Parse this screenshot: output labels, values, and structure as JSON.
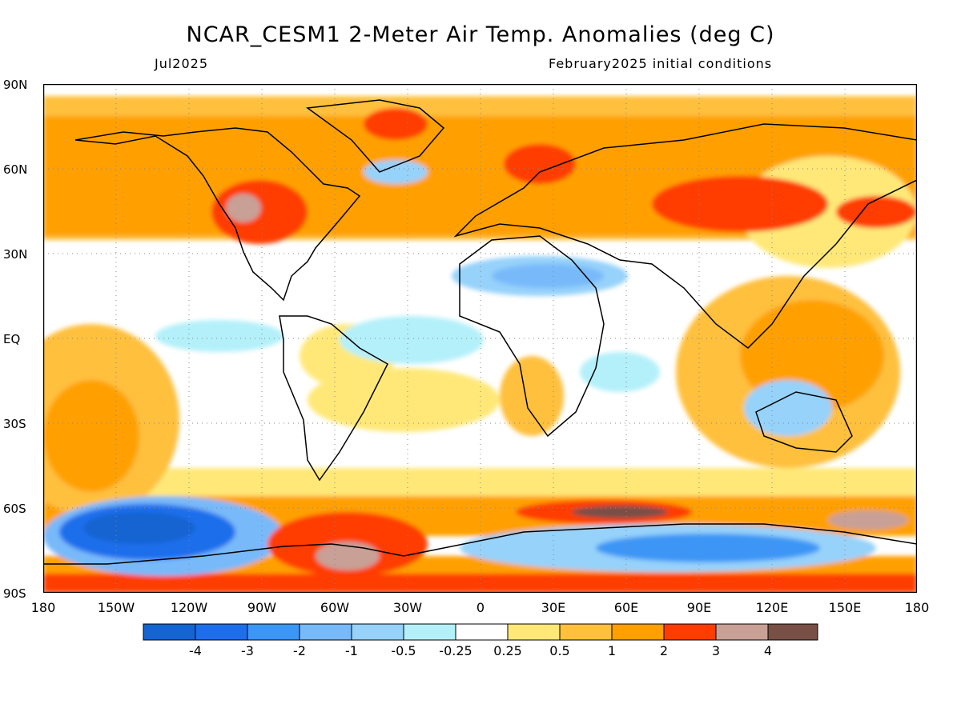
{
  "title": "NCAR_CESM1 2-Meter Air Temp. Anomalies (deg C)",
  "subtitle_left": "Jul2025",
  "subtitle_right": "February2025 initial conditions",
  "y_axis_labels": [
    "90N",
    "60N",
    "30N",
    "EQ",
    "30S",
    "60S",
    "90S"
  ],
  "x_axis_labels": [
    "180",
    "150W",
    "120W",
    "90W",
    "60W",
    "30W",
    "0",
    "30E",
    "60E",
    "90E",
    "120E",
    "150E",
    "180"
  ],
  "colorbar": {
    "colors": [
      "#1464d2",
      "#1e6eeb",
      "#3c96f5",
      "#78b9fa",
      "#96d2fa",
      "#b4f0fa",
      "#ffffff",
      "#ffe878",
      "#ffc03c",
      "#ffa000",
      "#ff3c00",
      "#c8a096",
      "#785046"
    ],
    "labels": [
      "-4",
      "-3",
      "-2",
      "-1",
      "-0.5",
      "-0.25",
      "0.25",
      "0.5",
      "1",
      "2",
      "3",
      "4"
    ]
  },
  "colors": {
    "ocean_base": "#ffffff",
    "warm_light": "#ffe878",
    "warm_mid": "#ffc03c",
    "warm": "#ffa000",
    "hot": "#ff3c00",
    "very_hot": "#c8a096",
    "extreme": "#785046",
    "cool_light": "#b4f0fa",
    "cool": "#96d2fa",
    "cool_mid": "#78b9fa",
    "cold": "#3c96f5",
    "very_cold": "#1e6eeb",
    "extreme_cold": "#1464d2",
    "coastline": "#000000",
    "grid": "#888888"
  }
}
